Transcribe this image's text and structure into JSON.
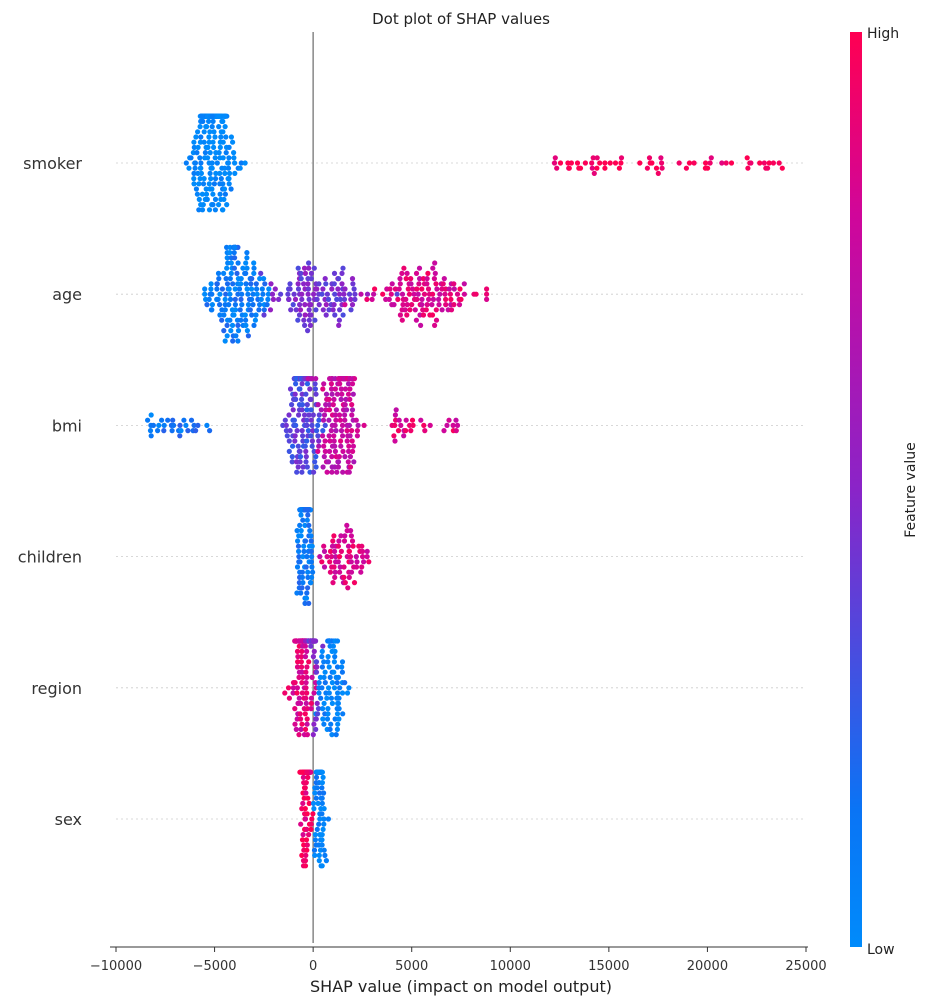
{
  "chart_data": {
    "type": "scatter",
    "title": "Dot plot of SHAP values",
    "xlabel": "SHAP value (impact on model output)",
    "ylabel": "",
    "xlim": [
      -10000,
      25000
    ],
    "xticks": [
      -10000,
      -5000,
      0,
      5000,
      10000,
      15000,
      20000,
      25000
    ],
    "xtick_labels": [
      "−10000",
      "−5000",
      "0",
      "5000",
      "10000",
      "15000",
      "20000",
      "25000"
    ],
    "features": [
      "smoker",
      "age",
      "bmi",
      "children",
      "region",
      "sex"
    ],
    "colorbar": {
      "label": "Feature value",
      "high_label": "High",
      "low_label": "Low",
      "low_color": "#008bfb",
      "high_color": "#ff0052"
    },
    "grid": false,
    "legend": "colorbar-right",
    "series": [
      {
        "name": "smoker",
        "value_range": [
          -7000,
          23800
        ],
        "clusters": [
          {
            "center": -5100,
            "spread": 1100,
            "feature_value": 0.0,
            "count": 260
          },
          {
            "center": 18000,
            "spread": 5900,
            "feature_value": 1.0,
            "count": 60,
            "uniform": true
          }
        ]
      },
      {
        "name": "age",
        "value_range": [
          -5500,
          8800
        ],
        "clusters": [
          {
            "center": -3800,
            "spread": 1500,
            "feature_value": 0.1,
            "count": 150
          },
          {
            "center": 0,
            "spread": 2600,
            "feature_value": 0.45,
            "count": 120
          },
          {
            "center": 5600,
            "spread": 2800,
            "feature_value": 0.85,
            "count": 120
          }
        ]
      },
      {
        "name": "bmi",
        "value_range": [
          -8500,
          7500
        ],
        "clusters": [
          {
            "center": -6800,
            "spread": 1600,
            "feature_value": 0.12,
            "count": 30,
            "uniform": true
          },
          {
            "center": -600,
            "spread": 900,
            "feature_value": 0.35,
            "count": 150
          },
          {
            "center": 1300,
            "spread": 1100,
            "feature_value": 0.75,
            "count": 150
          },
          {
            "center": 5800,
            "spread": 1800,
            "feature_value": 0.85,
            "count": 30,
            "uniform": true
          }
        ]
      },
      {
        "name": "children",
        "value_range": [
          -1300,
          4400
        ],
        "clusters": [
          {
            "center": -400,
            "spread": 350,
            "feature_value": 0.1,
            "count": 200
          },
          {
            "center": 1500,
            "spread": 1200,
            "feature_value": 0.85,
            "count": 70
          }
        ]
      },
      {
        "name": "region",
        "value_range": [
          -1900,
          2200
        ],
        "clusters": [
          {
            "center": -500,
            "spread": 500,
            "feature_value": 0.85,
            "count": 140
          },
          {
            "center": 900,
            "spread": 700,
            "feature_value": 0.05,
            "count": 90
          },
          {
            "center": 0,
            "spread": 300,
            "feature_value": 0.45,
            "count": 50
          }
        ]
      },
      {
        "name": "sex",
        "value_range": [
          -800,
          800
        ],
        "clusters": [
          {
            "center": -350,
            "spread": 250,
            "feature_value": 0.95,
            "count": 110
          },
          {
            "center": 350,
            "spread": 250,
            "feature_value": 0.05,
            "count": 110
          }
        ]
      }
    ]
  }
}
